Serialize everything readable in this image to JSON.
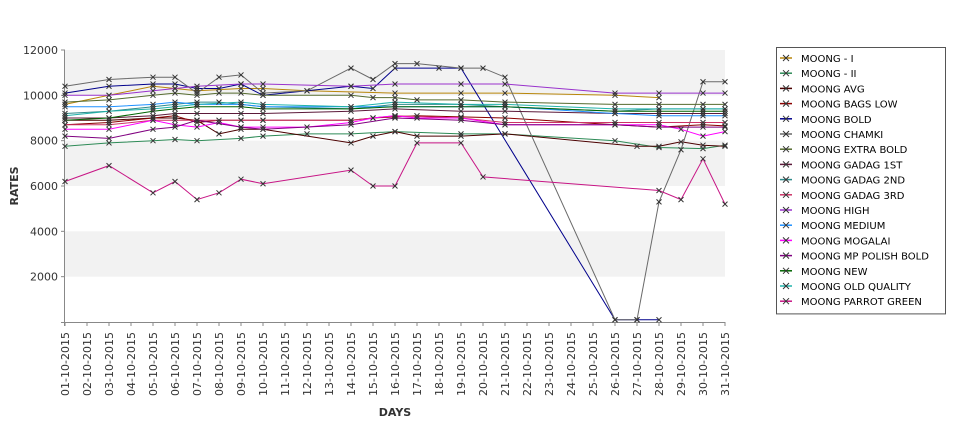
{
  "chart_data": {
    "type": "line",
    "xlabel": "DAYS",
    "ylabel": "RATES",
    "ylim": [
      0,
      12000
    ],
    "yticks": [
      2000,
      4000,
      6000,
      8000,
      10000,
      12000
    ],
    "grid": "alternating horizontal bands",
    "legend_position": "right",
    "categories": [
      "01-10-2015",
      "02-10-2015",
      "03-10-2015",
      "04-10-2015",
      "05-10-2015",
      "06-10-2015",
      "07-10-2015",
      "08-10-2015",
      "09-10-2015",
      "10-10-2015",
      "11-10-2015",
      "12-10-2015",
      "13-10-2015",
      "14-10-2015",
      "15-10-2015",
      "16-10-2015",
      "17-10-2015",
      "18-10-2015",
      "19-10-2015",
      "20-10-2015",
      "21-10-2015",
      "22-10-2015",
      "23-10-2015",
      "24-10-2015",
      "25-10-2015",
      "26-10-2015",
      "27-10-2015",
      "28-10-2015",
      "29-10-2015",
      "30-10-2015",
      "31-10-2015"
    ],
    "series": [
      {
        "name": "MOONG - I",
        "color": "#b8860b",
        "points": [
          [
            0,
            9600
          ],
          [
            2,
            10000
          ],
          [
            4,
            10400
          ],
          [
            5,
            10300
          ],
          [
            6,
            10200
          ],
          [
            8,
            10300
          ],
          [
            9,
            10300
          ],
          [
            11,
            10200
          ],
          [
            15,
            10100
          ],
          [
            18,
            10100
          ],
          [
            20,
            10100
          ],
          [
            25,
            10000
          ],
          [
            27,
            9900
          ]
        ]
      },
      {
        "name": "MOONG - II",
        "color": "#2e8b57",
        "points": [
          [
            0,
            7750
          ],
          [
            2,
            7900
          ],
          [
            4,
            8000
          ],
          [
            5,
            8050
          ],
          [
            6,
            8000
          ],
          [
            8,
            8100
          ],
          [
            9,
            8200
          ],
          [
            11,
            8300
          ],
          [
            13,
            8300
          ],
          [
            15,
            8400
          ],
          [
            18,
            8300
          ],
          [
            20,
            8300
          ],
          [
            25,
            8000
          ],
          [
            27,
            7700
          ],
          [
            29,
            7650
          ],
          [
            30,
            7800
          ]
        ]
      },
      {
        "name": "MOONG AVG",
        "color": "#4b0000",
        "points": [
          [
            0,
            8900
          ],
          [
            2,
            8900
          ],
          [
            4,
            9000
          ],
          [
            5,
            9000
          ],
          [
            6,
            8900
          ],
          [
            7,
            8300
          ],
          [
            8,
            8500
          ],
          [
            9,
            8500
          ],
          [
            13,
            7900
          ],
          [
            14,
            8200
          ],
          [
            15,
            8400
          ],
          [
            16,
            8200
          ],
          [
            18,
            8200
          ],
          [
            20,
            8300
          ],
          [
            26,
            7750
          ],
          [
            27,
            7750
          ],
          [
            28,
            7950
          ],
          [
            29,
            7800
          ],
          [
            30,
            7750
          ]
        ]
      },
      {
        "name": "MOONG BAGS LOW",
        "color": "#8b0000",
        "points": [
          [
            0,
            8700
          ],
          [
            2,
            8800
          ],
          [
            4,
            9000
          ],
          [
            5,
            9100
          ],
          [
            6,
            8800
          ],
          [
            7,
            8900
          ],
          [
            8,
            8900
          ],
          [
            9,
            8900
          ],
          [
            13,
            8900
          ],
          [
            14,
            9000
          ],
          [
            15,
            9050
          ],
          [
            16,
            9100
          ],
          [
            18,
            9050
          ],
          [
            20,
            9000
          ],
          [
            25,
            8700
          ],
          [
            27,
            8600
          ],
          [
            29,
            8700
          ],
          [
            30,
            8650
          ]
        ]
      },
      {
        "name": "MOONG BOLD",
        "color": "#00008b",
        "points": [
          [
            0,
            10100
          ],
          [
            2,
            10400
          ],
          [
            4,
            10500
          ],
          [
            5,
            10500
          ],
          [
            6,
            10300
          ],
          [
            7,
            10300
          ],
          [
            8,
            10500
          ],
          [
            9,
            10000
          ],
          [
            13,
            10400
          ],
          [
            14,
            10300
          ],
          [
            15,
            11200
          ],
          [
            17,
            11200
          ],
          [
            18,
            11200
          ],
          [
            25,
            100
          ],
          [
            26,
            100
          ],
          [
            27,
            100
          ]
        ]
      },
      {
        "name": "MOONG CHAMKI",
        "color": "#696969",
        "points": [
          [
            0,
            10400
          ],
          [
            2,
            10700
          ],
          [
            4,
            10800
          ],
          [
            5,
            10800
          ],
          [
            6,
            10100
          ],
          [
            7,
            10800
          ],
          [
            8,
            10900
          ],
          [
            9,
            10100
          ],
          [
            11,
            10200
          ],
          [
            13,
            11200
          ],
          [
            14,
            10700
          ],
          [
            15,
            11400
          ],
          [
            16,
            11400
          ],
          [
            18,
            11200
          ],
          [
            19,
            11200
          ],
          [
            20,
            10800
          ],
          [
            25,
            100
          ],
          [
            26,
            100
          ],
          [
            27,
            5300
          ],
          [
            28,
            7600
          ],
          [
            29,
            10600
          ],
          [
            30,
            10600
          ]
        ]
      },
      {
        "name": "MOONG EXTRA BOLD",
        "color": "#556b2f",
        "points": [
          [
            0,
            9700
          ],
          [
            2,
            9800
          ],
          [
            4,
            10000
          ],
          [
            5,
            10100
          ],
          [
            6,
            10000
          ],
          [
            7,
            10100
          ],
          [
            8,
            10100
          ],
          [
            9,
            10000
          ],
          [
            13,
            10000
          ],
          [
            14,
            9900
          ],
          [
            15,
            9900
          ],
          [
            16,
            9800
          ],
          [
            18,
            9800
          ],
          [
            20,
            9700
          ],
          [
            25,
            9600
          ],
          [
            27,
            9600
          ],
          [
            29,
            9600
          ],
          [
            30,
            9600
          ]
        ]
      },
      {
        "name": "MOONG GADAG 1ST",
        "color": "#5c1a3a",
        "points": [
          [
            0,
            9000
          ],
          [
            2,
            9000
          ],
          [
            4,
            9100
          ],
          [
            5,
            9200
          ],
          [
            6,
            9200
          ],
          [
            8,
            9200
          ],
          [
            9,
            9200
          ],
          [
            13,
            9300
          ],
          [
            15,
            9400
          ],
          [
            18,
            9300
          ],
          [
            20,
            9300
          ],
          [
            25,
            9200
          ],
          [
            27,
            9200
          ],
          [
            29,
            9200
          ],
          [
            30,
            9200
          ]
        ]
      },
      {
        "name": "MOONG GADAG 2ND",
        "color": "#2e8b8b",
        "points": [
          [
            0,
            9200
          ],
          [
            2,
            9300
          ],
          [
            4,
            9500
          ],
          [
            5,
            9600
          ],
          [
            6,
            9700
          ],
          [
            7,
            9700
          ],
          [
            8,
            9600
          ],
          [
            9,
            9500
          ],
          [
            13,
            9400
          ],
          [
            15,
            9600
          ],
          [
            18,
            9600
          ],
          [
            20,
            9500
          ],
          [
            25,
            9300
          ],
          [
            27,
            9400
          ],
          [
            29,
            9400
          ],
          [
            30,
            9400
          ]
        ]
      },
      {
        "name": "MOONG GADAG 3RD",
        "color": "#cc3366",
        "points": [
          [
            0,
            8700
          ],
          [
            2,
            8700
          ],
          [
            4,
            8900
          ],
          [
            5,
            8900
          ],
          [
            6,
            8900
          ],
          [
            8,
            8900
          ],
          [
            9,
            8900
          ],
          [
            13,
            8900
          ],
          [
            15,
            9100
          ],
          [
            18,
            9000
          ],
          [
            20,
            8800
          ],
          [
            25,
            8800
          ],
          [
            27,
            8800
          ],
          [
            29,
            8800
          ],
          [
            30,
            8800
          ]
        ]
      },
      {
        "name": "MOONG HIGH",
        "color": "#9932cc",
        "points": [
          [
            0,
            10000
          ],
          [
            2,
            10000
          ],
          [
            4,
            10200
          ],
          [
            5,
            10300
          ],
          [
            6,
            10400
          ],
          [
            8,
            10500
          ],
          [
            9,
            10500
          ],
          [
            13,
            10400
          ],
          [
            15,
            10500
          ],
          [
            18,
            10500
          ],
          [
            20,
            10500
          ],
          [
            25,
            10100
          ],
          [
            27,
            10100
          ],
          [
            29,
            10100
          ],
          [
            30,
            10100
          ]
        ]
      },
      {
        "name": "MOONG MEDIUM",
        "color": "#1e90ff",
        "points": [
          [
            0,
            9500
          ],
          [
            2,
            9500
          ],
          [
            4,
            9600
          ],
          [
            5,
            9700
          ],
          [
            6,
            9600
          ],
          [
            8,
            9600
          ],
          [
            9,
            9500
          ],
          [
            13,
            9500
          ],
          [
            15,
            9500
          ],
          [
            18,
            9500
          ],
          [
            20,
            9500
          ],
          [
            25,
            9200
          ],
          [
            27,
            9100
          ],
          [
            29,
            9100
          ],
          [
            30,
            9100
          ]
        ]
      },
      {
        "name": "MOONG MOGALAI",
        "color": "#ff00ff",
        "points": [
          [
            0,
            8500
          ],
          [
            2,
            8500
          ],
          [
            4,
            8900
          ],
          [
            5,
            8700
          ],
          [
            6,
            8600
          ],
          [
            7,
            8800
          ],
          [
            8,
            8600
          ],
          [
            9,
            8600
          ],
          [
            11,
            8600
          ],
          [
            13,
            8800
          ],
          [
            14,
            9000
          ],
          [
            15,
            9100
          ],
          [
            16,
            9000
          ],
          [
            18,
            9000
          ],
          [
            20,
            8700
          ],
          [
            25,
            8700
          ],
          [
            27,
            8700
          ],
          [
            28,
            8500
          ],
          [
            29,
            8200
          ],
          [
            30,
            8400
          ]
        ]
      },
      {
        "name": "MOONG MP POLISH BOLD",
        "color": "#800080",
        "points": [
          [
            0,
            8200
          ],
          [
            2,
            8100
          ],
          [
            4,
            8500
          ],
          [
            5,
            8600
          ],
          [
            6,
            8900
          ],
          [
            8,
            8600
          ],
          [
            9,
            8500
          ],
          [
            13,
            8700
          ],
          [
            15,
            9000
          ],
          [
            18,
            8900
          ],
          [
            20,
            8700
          ],
          [
            25,
            8700
          ],
          [
            27,
            8600
          ],
          [
            29,
            8600
          ],
          [
            30,
            8600
          ]
        ]
      },
      {
        "name": "MOONG NEW",
        "color": "#006400",
        "points": [
          [
            0,
            8900
          ],
          [
            2,
            9000
          ],
          [
            4,
            9300
          ],
          [
            5,
            9400
          ],
          [
            6,
            9500
          ],
          [
            8,
            9500
          ],
          [
            9,
            9400
          ],
          [
            13,
            9400
          ],
          [
            15,
            9500
          ],
          [
            18,
            9500
          ],
          [
            20,
            9500
          ],
          [
            25,
            9300
          ],
          [
            27,
            9300
          ],
          [
            29,
            9300
          ],
          [
            30,
            9300
          ]
        ]
      },
      {
        "name": "MOONG OLD QUALITY",
        "color": "#20b2aa",
        "points": [
          [
            0,
            9100
          ],
          [
            2,
            9300
          ],
          [
            4,
            9400
          ],
          [
            5,
            9500
          ],
          [
            6,
            9600
          ],
          [
            8,
            9700
          ],
          [
            9,
            9600
          ],
          [
            13,
            9500
          ],
          [
            15,
            9700
          ],
          [
            18,
            9600
          ],
          [
            20,
            9600
          ],
          [
            25,
            9400
          ],
          [
            27,
            9400
          ],
          [
            29,
            9400
          ],
          [
            30,
            9400
          ]
        ]
      },
      {
        "name": "MOONG PARROT GREEN",
        "color": "#c71585",
        "points": [
          [
            0,
            6200
          ],
          [
            2,
            6900
          ],
          [
            4,
            5700
          ],
          [
            5,
            6200
          ],
          [
            6,
            5400
          ],
          [
            7,
            5700
          ],
          [
            8,
            6300
          ],
          [
            9,
            6100
          ],
          [
            13,
            6700
          ],
          [
            14,
            6000
          ],
          [
            15,
            6000
          ],
          [
            16,
            7900
          ],
          [
            18,
            7900
          ],
          [
            19,
            6400
          ],
          [
            27,
            5800
          ],
          [
            28,
            5400
          ],
          [
            29,
            7200
          ],
          [
            30,
            5200
          ]
        ]
      }
    ]
  }
}
